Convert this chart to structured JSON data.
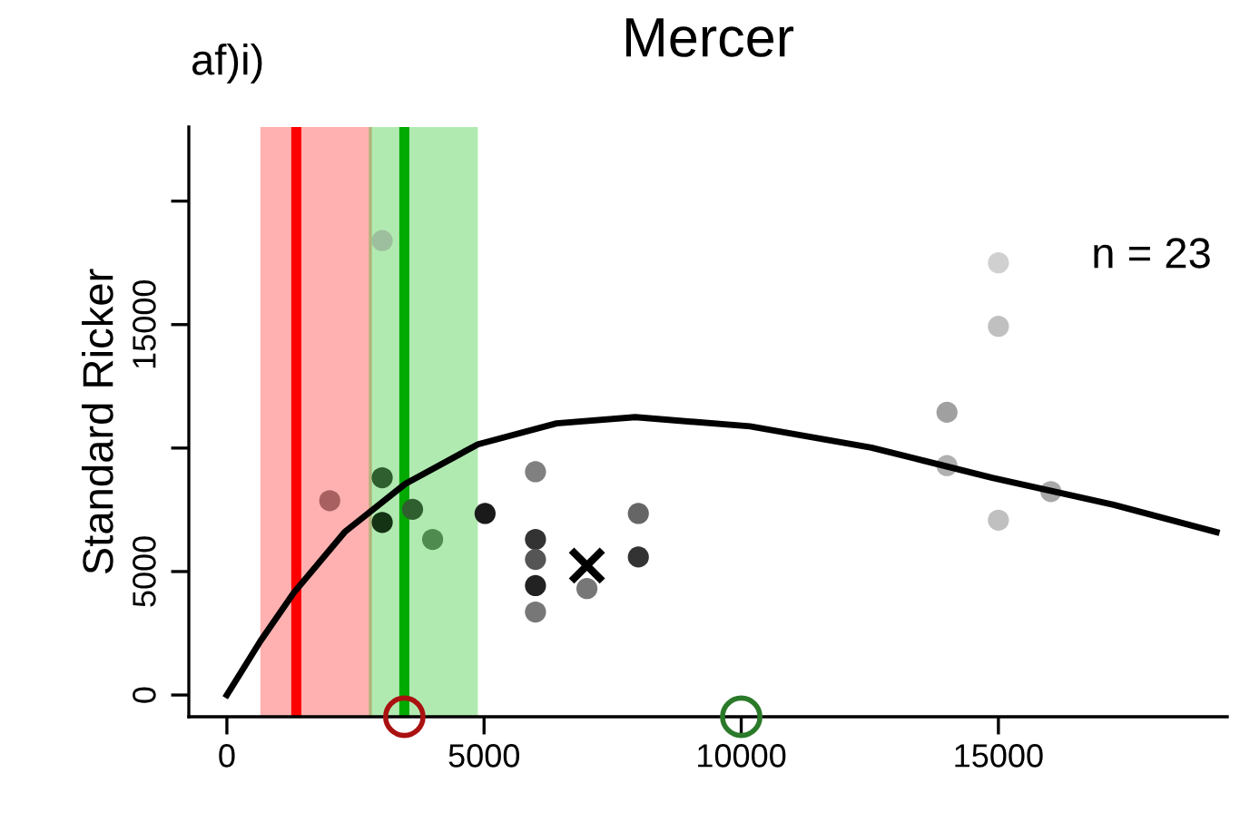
{
  "chart_data": {
    "type": "scatter",
    "title": "Mercer",
    "ylabel": "Standard Ricker",
    "annotations": [
      "af)i)",
      "n = 23"
    ],
    "xlim": [
      -740,
      19450
    ],
    "ylim": [
      -880,
      23000
    ],
    "xticks": [
      0,
      5000,
      10000,
      15000
    ],
    "yticks": [
      0,
      5000,
      {
        "value": 10000,
        "label": null
      },
      15000,
      {
        "value": 20000,
        "label": null
      }
    ],
    "grid": false,
    "bands": [
      {
        "axis": "x",
        "from": 680,
        "to": 2790,
        "color": "#ff0000"
      },
      {
        "axis": "x",
        "from": 2790,
        "to": 4850,
        "color": "#00bb00"
      }
    ],
    "ref_lines": [
      {
        "axis": "x",
        "value": 1350,
        "color": "#ff0000"
      },
      {
        "axis": "x",
        "value": 3450,
        "color": "#00aa00"
      }
    ],
    "series": [
      {
        "marker": "circle",
        "x": [
          3020,
          2000,
          3020,
          3020,
          3610,
          4000,
          5020,
          6000,
          6000,
          6000,
          6000,
          6000,
          7000,
          8000,
          8000,
          14000,
          14000,
          15000,
          15000,
          15000,
          16020
        ],
        "values": [
          18400,
          7870,
          8800,
          6990,
          7520,
          6300,
          7350,
          9040,
          6300,
          5490,
          4430,
          3360,
          4310,
          7350,
          5590,
          11450,
          9290,
          17500,
          14930,
          7080,
          8240
        ],
        "colors": [
          "#9dbf9d",
          "#a86060",
          "#2f5f2f",
          "#143214",
          "#2f5f2f",
          "#4f8a4f",
          "#1a1a1a",
          "#808080",
          "#333333",
          "#555555",
          "#222222",
          "#777777",
          "#777777",
          "#666666",
          "#333333",
          "#a0a0a0",
          "#b0b0b0",
          "#d0d0d0",
          "#c0c0c0",
          "#c0c0c0",
          "#a8a8a8"
        ]
      },
      {
        "marker": "cross",
        "x": [
          7000
        ],
        "values": [
          5240
        ],
        "color": "#000000"
      },
      {
        "type": "line",
        "color": "#000000",
        "x": [
          0,
          650,
          1300,
          2290,
          3470,
          4880,
          6410,
          7940,
          10170,
          12530,
          14880,
          17240,
          19240
        ],
        "values": [
          0,
          2180,
          4140,
          6600,
          8550,
          10150,
          11000,
          11250,
          10880,
          10020,
          8800,
          7700,
          6600
        ]
      },
      {
        "marker": "circle",
        "x": [
          3450
        ],
        "values": [
          -880
        ],
        "color": "#aa1111"
      },
      {
        "marker": "circle",
        "x": [
          10000
        ],
        "values": [
          -880
        ],
        "color": "#2a7a2a"
      }
    ]
  }
}
